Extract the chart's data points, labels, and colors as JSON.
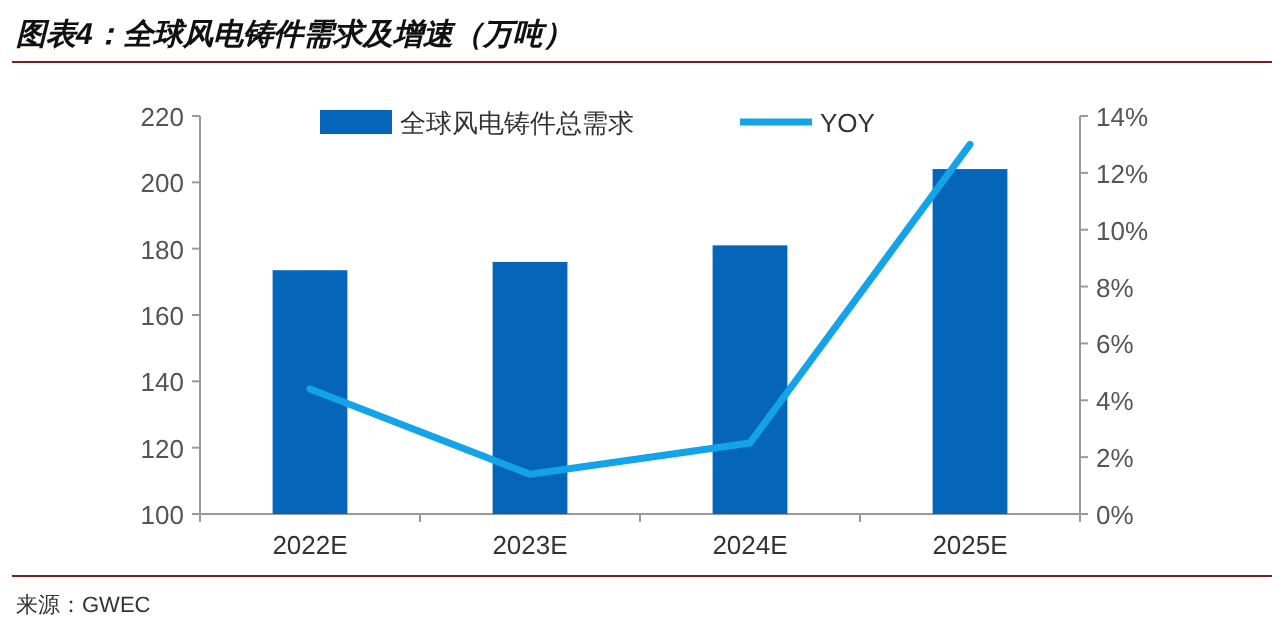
{
  "chart_data": {
    "type": "bar",
    "title": "图表4：全球风电铸件需求及增速（万吨）",
    "categories": [
      "2022E",
      "2023E",
      "2024E",
      "2025E"
    ],
    "series": [
      {
        "name": "全球风电铸件总需求",
        "color": "#0565b8",
        "values": [
          173.5,
          176,
          181,
          204
        ]
      },
      {
        "name": "YOY",
        "type": "line",
        "axis": "y2",
        "color": "#12a3e8",
        "values": [
          4.4,
          1.4,
          2.5,
          13.0
        ]
      }
    ],
    "ylim": [
      100,
      220
    ],
    "yticks": [
      100,
      120,
      140,
      160,
      180,
      200,
      220
    ],
    "y2lim": [
      0,
      14
    ],
    "y2ticks": [
      {
        "value": 0,
        "label": "0%"
      },
      {
        "value": 2,
        "label": "2%"
      },
      {
        "value": 4,
        "label": "4%"
      },
      {
        "value": 6,
        "label": "6%"
      },
      {
        "value": 8,
        "label": "8%"
      },
      {
        "value": 10,
        "label": "10%"
      },
      {
        "value": 12,
        "label": "12%"
      },
      {
        "value": 14,
        "label": "14%"
      }
    ],
    "legend": "top",
    "grid": false,
    "annotations": [
      "来源：GWEC"
    ]
  }
}
